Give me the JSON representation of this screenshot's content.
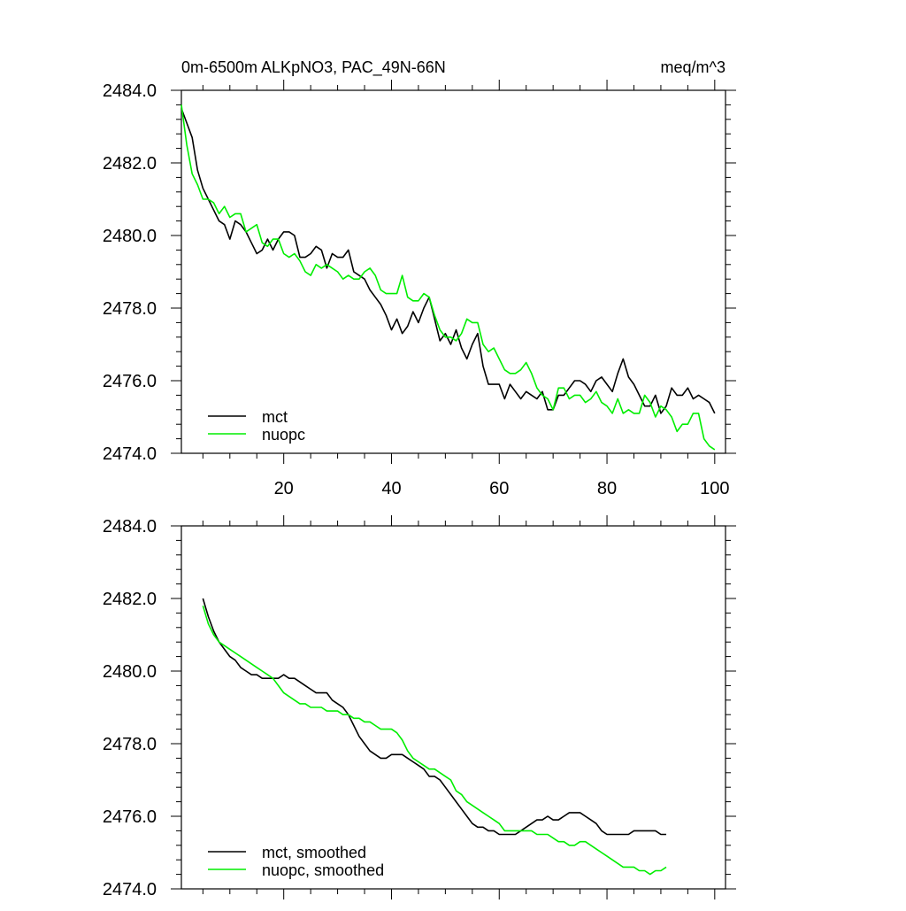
{
  "chart_data": [
    {
      "type": "line",
      "title": "0m-6500m ALKpNO3, PAC_49N-66N",
      "units": "meq/m^3",
      "xlim": [
        1,
        102
      ],
      "ylim": [
        2474.0,
        2484.0
      ],
      "x_ticks": [
        20,
        40,
        60,
        80,
        100
      ],
      "x_tick_labels": [
        "20",
        "40",
        "60",
        "80",
        "100"
      ],
      "y_ticks": [
        2474.0,
        2476.0,
        2478.0,
        2480.0,
        2482.0,
        2484.0
      ],
      "y_tick_labels": [
        "2474.0",
        "2476.0",
        "2478.0",
        "2480.0",
        "2482.0",
        "2484.0"
      ],
      "legend_placement": "bottom-left",
      "series": [
        {
          "name": "mct",
          "color": "#000000",
          "x_start": 1,
          "values": [
            2483.5,
            2483.1,
            2482.7,
            2481.8,
            2481.3,
            2481.0,
            2480.7,
            2480.4,
            2480.3,
            2479.9,
            2480.4,
            2480.3,
            2480.1,
            2479.8,
            2479.5,
            2479.6,
            2479.9,
            2479.6,
            2479.9,
            2480.1,
            2480.1,
            2480.0,
            2479.4,
            2479.4,
            2479.5,
            2479.7,
            2479.6,
            2479.1,
            2479.5,
            2479.4,
            2479.4,
            2479.6,
            2479.0,
            2478.9,
            2478.8,
            2478.5,
            2478.3,
            2478.1,
            2477.8,
            2477.4,
            2477.7,
            2477.3,
            2477.5,
            2477.9,
            2477.6,
            2478.0,
            2478.3,
            2477.7,
            2477.1,
            2477.3,
            2477.0,
            2477.4,
            2476.9,
            2476.6,
            2477.0,
            2477.3,
            2476.4,
            2475.9,
            2475.9,
            2475.9,
            2475.5,
            2475.9,
            2475.7,
            2475.5,
            2475.7,
            2475.6,
            2475.5,
            2475.7,
            2475.2,
            2475.2,
            2475.6,
            2475.6,
            2475.8,
            2476.0,
            2476.0,
            2475.9,
            2475.7,
            2476.0,
            2476.1,
            2475.9,
            2475.7,
            2476.2,
            2476.6,
            2476.1,
            2475.9,
            2475.6,
            2475.3,
            2475.3,
            2475.6,
            2475.1,
            2475.3,
            2475.8,
            2475.6,
            2475.6,
            2475.8,
            2475.5,
            2475.6,
            2475.5,
            2475.4,
            2475.1
          ]
        },
        {
          "name": "nuopc",
          "color": "#00ee00",
          "x_start": 1,
          "values": [
            2483.6,
            2482.5,
            2481.7,
            2481.4,
            2481.0,
            2481.0,
            2480.9,
            2480.6,
            2480.8,
            2480.5,
            2480.6,
            2480.6,
            2480.1,
            2480.2,
            2480.3,
            2479.8,
            2479.7,
            2479.9,
            2479.9,
            2479.5,
            2479.4,
            2479.5,
            2479.3,
            2479.0,
            2478.9,
            2479.2,
            2479.1,
            2479.2,
            2479.1,
            2479.0,
            2478.8,
            2478.9,
            2478.8,
            2478.8,
            2479.0,
            2479.1,
            2478.9,
            2478.5,
            2478.4,
            2478.4,
            2478.4,
            2478.9,
            2478.3,
            2478.2,
            2478.2,
            2478.4,
            2478.3,
            2477.8,
            2477.4,
            2477.2,
            2477.2,
            2477.1,
            2477.3,
            2477.7,
            2477.6,
            2477.6,
            2477.0,
            2476.8,
            2476.9,
            2476.6,
            2476.3,
            2476.2,
            2476.2,
            2476.3,
            2476.5,
            2476.2,
            2475.8,
            2475.6,
            2475.5,
            2475.2,
            2475.8,
            2475.8,
            2475.5,
            2475.6,
            2475.6,
            2475.4,
            2475.5,
            2475.7,
            2475.4,
            2475.3,
            2475.1,
            2475.5,
            2475.1,
            2475.2,
            2475.1,
            2475.1,
            2475.6,
            2475.4,
            2475.0,
            2475.3,
            2475.2,
            2475.0,
            2474.6,
            2474.8,
            2474.8,
            2475.1,
            2475.1,
            2474.4,
            2474.2,
            2474.1
          ]
        }
      ]
    },
    {
      "type": "line",
      "title": "",
      "xlim": [
        1,
        102
      ],
      "ylim": [
        2474.0,
        2484.0
      ],
      "x_ticks": [
        20,
        40,
        60,
        80,
        100
      ],
      "y_ticks": [
        2474.0,
        2476.0,
        2478.0,
        2480.0,
        2482.0,
        2484.0
      ],
      "y_tick_labels": [
        "2474.0",
        "2476.0",
        "2478.0",
        "2480.0",
        "2482.0",
        "2484.0"
      ],
      "legend_placement": "bottom-left",
      "series": [
        {
          "name": "mct, smoothed",
          "color": "#000000",
          "x_start": 5,
          "values": [
            2482.0,
            2481.5,
            2481.1,
            2480.8,
            2480.6,
            2480.4,
            2480.3,
            2480.1,
            2480.0,
            2479.9,
            2479.9,
            2479.8,
            2479.8,
            2479.8,
            2479.8,
            2479.9,
            2479.8,
            2479.8,
            2479.7,
            2479.6,
            2479.5,
            2479.4,
            2479.4,
            2479.4,
            2479.2,
            2479.1,
            2479.0,
            2478.8,
            2478.5,
            2478.2,
            2478.0,
            2477.8,
            2477.7,
            2477.6,
            2477.6,
            2477.7,
            2477.7,
            2477.7,
            2477.6,
            2477.5,
            2477.4,
            2477.3,
            2477.1,
            2477.1,
            2477.0,
            2476.8,
            2476.6,
            2476.4,
            2476.2,
            2476.0,
            2475.8,
            2475.7,
            2475.7,
            2475.6,
            2475.6,
            2475.5,
            2475.5,
            2475.5,
            2475.5,
            2475.6,
            2475.7,
            2475.8,
            2475.9,
            2475.9,
            2476.0,
            2475.9,
            2475.9,
            2476.0,
            2476.1,
            2476.1,
            2476.1,
            2476.0,
            2475.9,
            2475.8,
            2475.6,
            2475.5,
            2475.5,
            2475.5,
            2475.5,
            2475.5,
            2475.6,
            2475.6,
            2475.6,
            2475.6,
            2475.6,
            2475.5,
            2475.5
          ]
        },
        {
          "name": "nuopc, smoothed",
          "color": "#00ee00",
          "x_start": 5,
          "values": [
            2481.8,
            2481.3,
            2481.0,
            2480.8,
            2480.7,
            2480.6,
            2480.5,
            2480.4,
            2480.3,
            2480.2,
            2480.1,
            2480.0,
            2479.9,
            2479.8,
            2479.6,
            2479.4,
            2479.3,
            2479.2,
            2479.1,
            2479.1,
            2479.0,
            2479.0,
            2479.0,
            2478.9,
            2478.9,
            2478.9,
            2478.8,
            2478.8,
            2478.7,
            2478.7,
            2478.6,
            2478.6,
            2478.5,
            2478.4,
            2478.4,
            2478.4,
            2478.3,
            2478.1,
            2477.8,
            2477.6,
            2477.5,
            2477.4,
            2477.3,
            2477.3,
            2477.2,
            2477.1,
            2477.0,
            2476.7,
            2476.6,
            2476.4,
            2476.3,
            2476.2,
            2476.1,
            2476.0,
            2475.9,
            2475.8,
            2475.6,
            2475.6,
            2475.6,
            2475.6,
            2475.6,
            2475.6,
            2475.5,
            2475.5,
            2475.5,
            2475.4,
            2475.3,
            2475.3,
            2475.2,
            2475.2,
            2475.3,
            2475.3,
            2475.2,
            2475.1,
            2475.0,
            2474.9,
            2474.8,
            2474.7,
            2474.6,
            2474.6,
            2474.6,
            2474.5,
            2474.5,
            2474.4,
            2474.5,
            2474.5,
            2474.6
          ]
        }
      ]
    }
  ]
}
